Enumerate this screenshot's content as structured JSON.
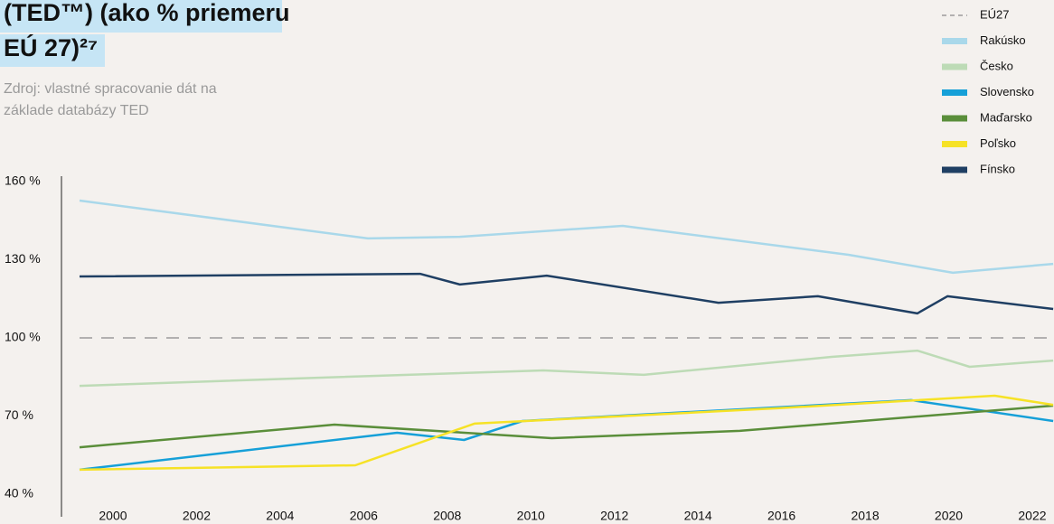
{
  "chart_data": {
    "type": "line",
    "title": [
      "(TED™) (ako % priemeru",
      "EÚ 27)²⁷"
    ],
    "subtitle": [
      "Zdroj: vlastné spracovanie dát na",
      "základe databázy TED"
    ],
    "xlim": [
      1999.2,
      2022.52
    ],
    "xticks": [
      2000,
      2002,
      2004,
      2006,
      2008,
      2010,
      2012,
      2014,
      2016,
      2018,
      2020,
      2022
    ],
    "ylim": [
      40,
      160
    ],
    "yticks": [
      {
        "value": 40,
        "label": "40 %"
      },
      {
        "value": 70,
        "label": "70 %"
      },
      {
        "value": 100,
        "label": "100 %"
      },
      {
        "value": 130,
        "label": "130 %"
      },
      {
        "value": 160,
        "label": "160 %"
      }
    ],
    "legend": "top-right",
    "series": [
      {
        "name": "EÚ27",
        "color": "#8a8a8a",
        "dashed": true,
        "x": [
          1999.2,
          2022.5
        ],
        "values": [
          100,
          100
        ]
      },
      {
        "name": "Rakúsko",
        "color": "#a9d8ea",
        "x": [
          1999.2,
          2006.1,
          2008.3,
          2012.2,
          2017.6,
          2020.1,
          2022.5
        ],
        "values": [
          152.7,
          138.2,
          138.8,
          143,
          131.9,
          125,
          128.4
        ]
      },
      {
        "name": "Česko",
        "color": "#bddbb6",
        "x": [
          1999.2,
          2004.9,
          2010.3,
          2012.7,
          2017.2,
          2019.25,
          2020.5,
          2022.5
        ],
        "values": [
          81.6,
          84.7,
          87.5,
          85.8,
          92.7,
          95.1,
          88.9,
          91.3
        ]
      },
      {
        "name": "Slovensko",
        "color": "#16a0d8",
        "x": [
          1999.2,
          2006.8,
          2008.4,
          2009.8,
          2019.1,
          2022.5
        ],
        "values": [
          49.4,
          63.6,
          60.8,
          68.1,
          76.1,
          68.1
        ]
      },
      {
        "name": "Maďarsko",
        "color": "#5a8e3a",
        "x": [
          1999.2,
          2005.3,
          2010.5,
          2015,
          2022.5
        ],
        "values": [
          58,
          66.7,
          61.5,
          64.3,
          74
        ]
      },
      {
        "name": "Poľsko",
        "color": "#f6e226",
        "x": [
          1999.2,
          2005.8,
          2008.65,
          2015.9,
          2021.1,
          2022.5
        ],
        "values": [
          49.4,
          51.1,
          67.1,
          73,
          77.8,
          74.3
        ]
      },
      {
        "name": "Fínsko",
        "color": "#1f3f63",
        "x": [
          1999.2,
          2007.35,
          2008.3,
          2010.38,
          2014.49,
          2016.87,
          2019.25,
          2019.97,
          2022.5
        ],
        "values": [
          123.6,
          124.6,
          120.5,
          123.9,
          113.5,
          116,
          109.4,
          116,
          111.1
        ]
      }
    ]
  }
}
